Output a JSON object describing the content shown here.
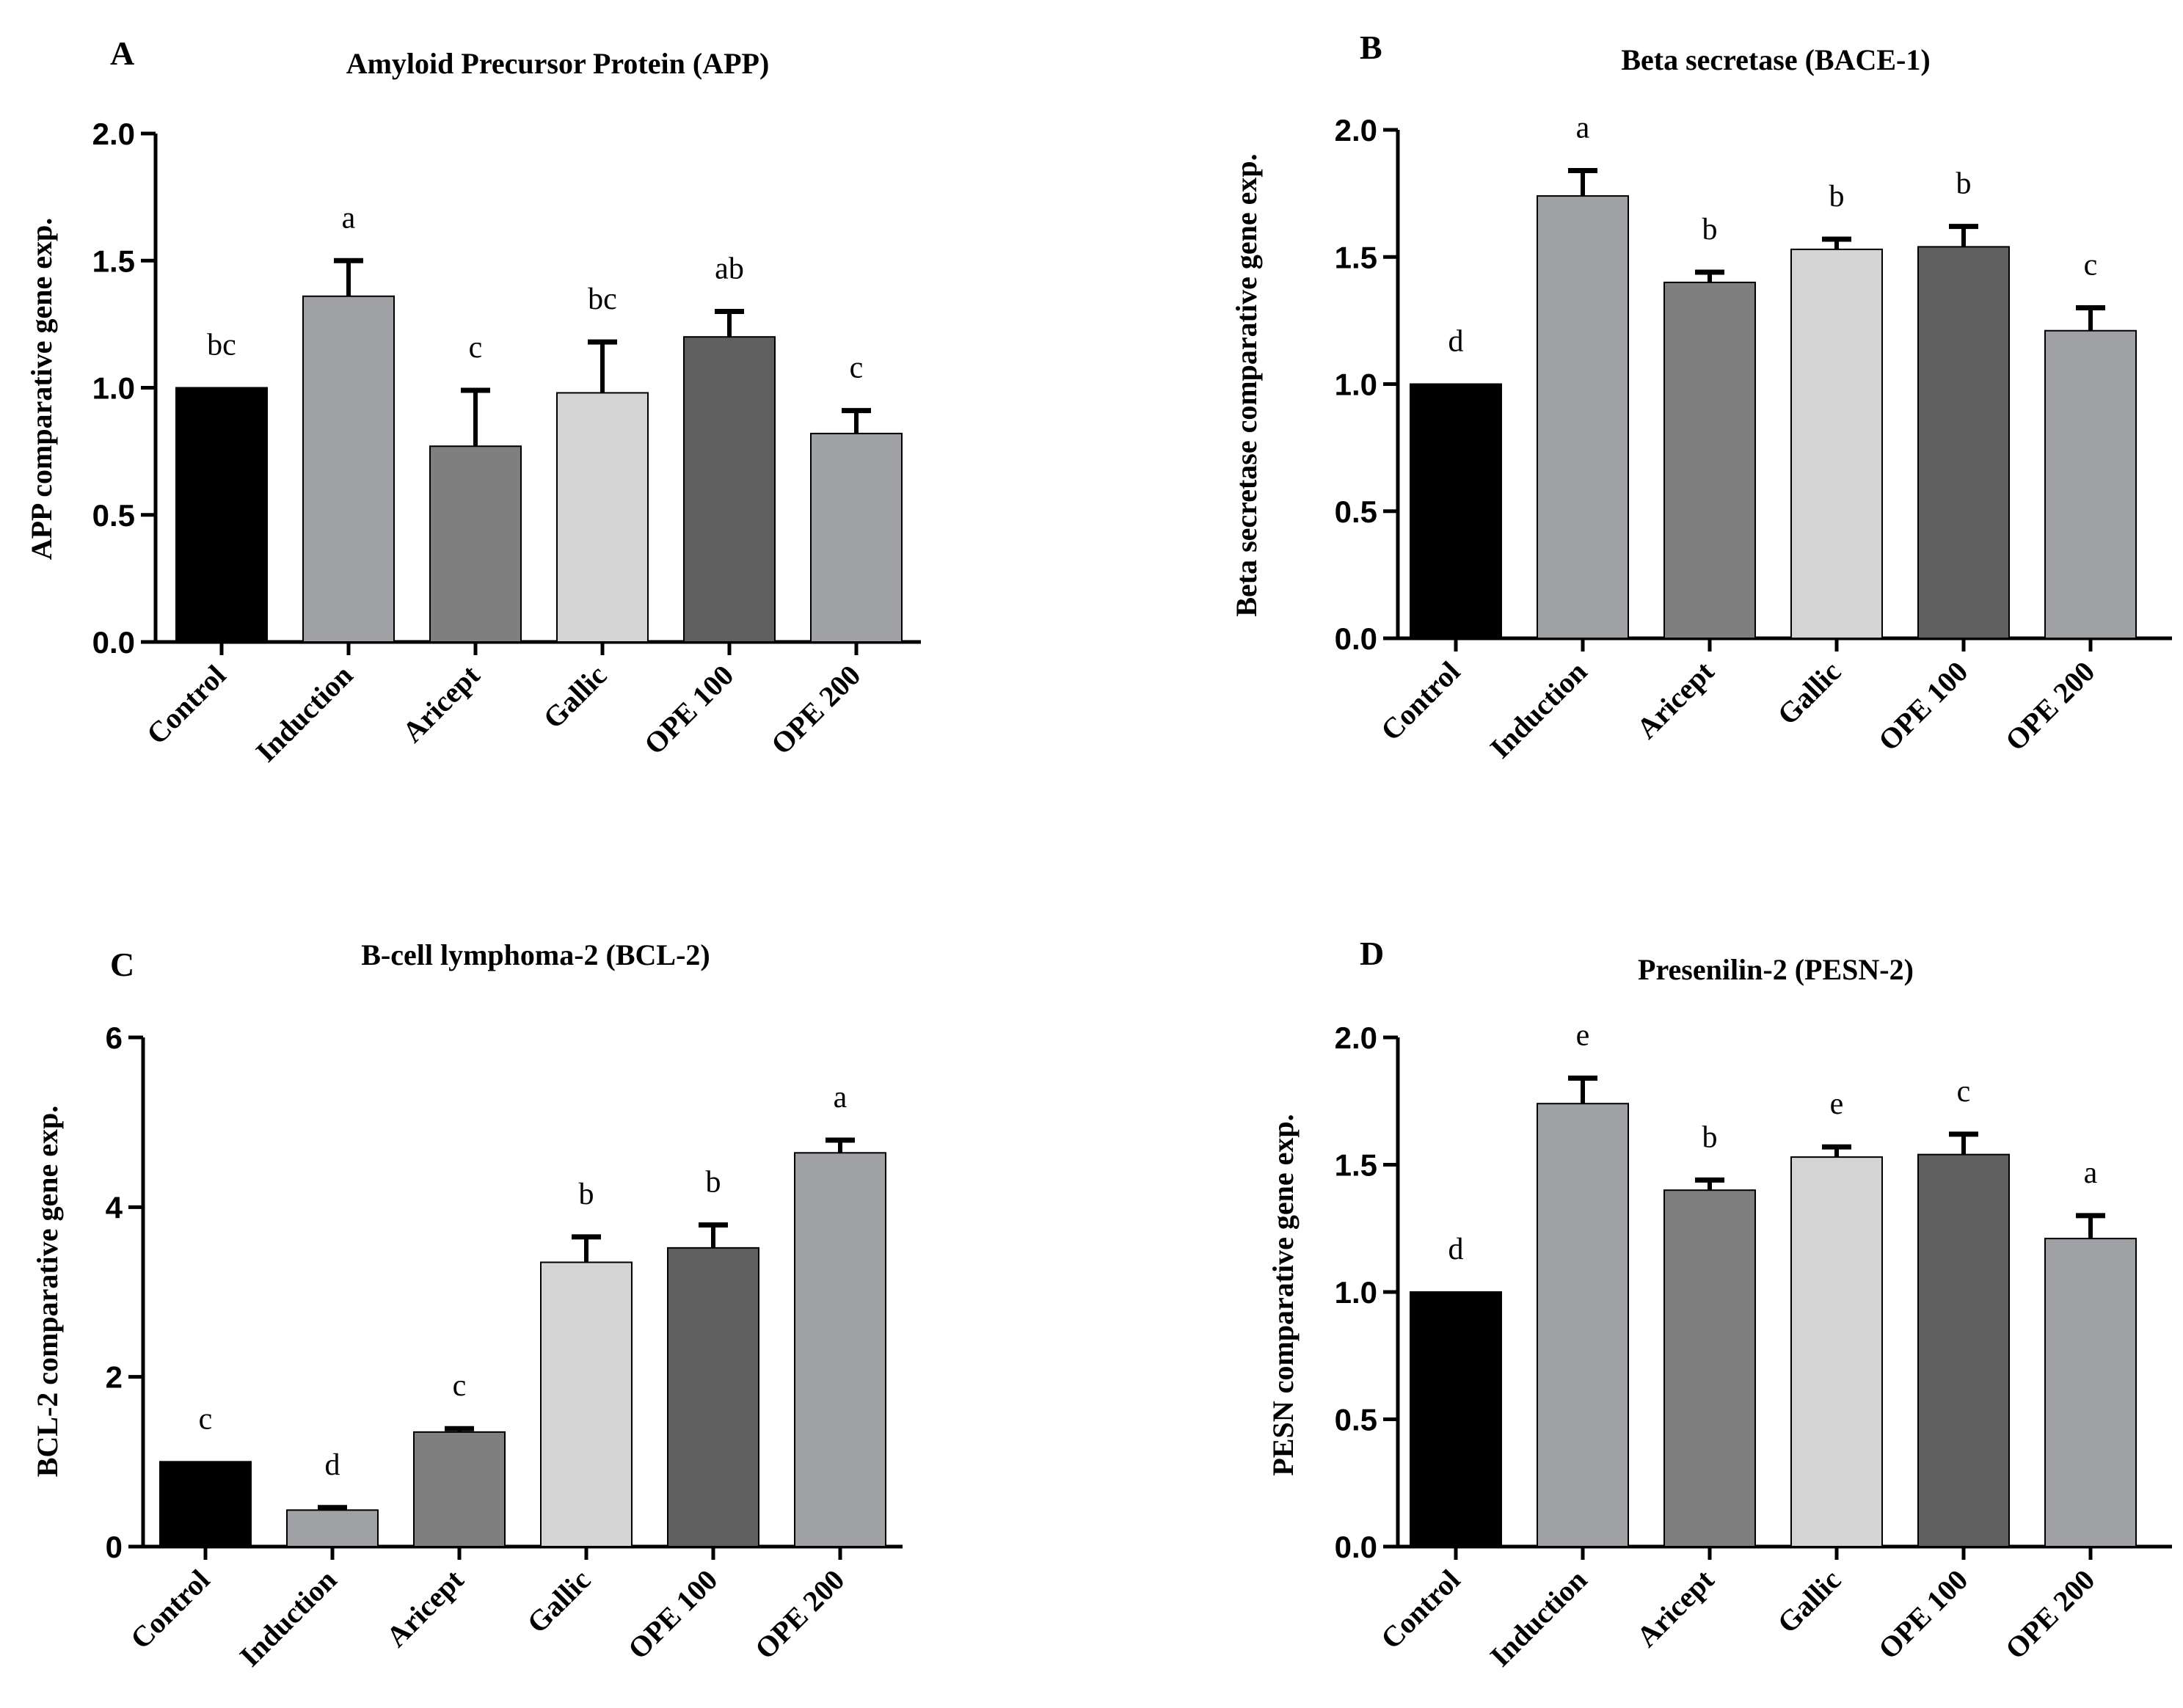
{
  "figure": {
    "background": "#ffffff",
    "axis_color": "#000000"
  },
  "chart_data": [
    {
      "panel": "A",
      "type": "bar",
      "title": "Amyloid Precursor Protein (APP)",
      "xlabel": "",
      "ylabel": "APP comparative gene exp.",
      "categories": [
        "Control",
        "Induction",
        "Aricept",
        "Gallic",
        "OPE 100",
        "OPE 200"
      ],
      "values": [
        1.0,
        1.36,
        0.77,
        0.98,
        1.2,
        0.82
      ],
      "errors": [
        0.0,
        0.14,
        0.22,
        0.2,
        0.1,
        0.09
      ],
      "sig_labels": [
        "bc",
        "a",
        "c",
        "bc",
        "ab",
        "c"
      ],
      "colors": [
        "#000000",
        "#a0a1a5",
        "#7f7f7f",
        "#d4d4d4",
        "#5f5f5f",
        "#a0a1a5"
      ],
      "ylim": [
        0,
        2.0
      ],
      "yticks": [
        0.0,
        0.5,
        1.0,
        1.5,
        2.0
      ],
      "ytick_labels": [
        "0.0",
        "0.5",
        "1.0",
        "1.5",
        "2.0"
      ]
    },
    {
      "panel": "B",
      "type": "bar",
      "title": "Beta secretase (BACE-1)",
      "xlabel": "",
      "ylabel": "Beta secretase comparative gene exp.",
      "categories": [
        "Control",
        "Induction",
        "Aricept",
        "Gallic",
        "OPE 100",
        "OPE 200"
      ],
      "values": [
        1.0,
        1.74,
        1.4,
        1.53,
        1.54,
        1.21
      ],
      "errors": [
        0.0,
        0.1,
        0.04,
        0.04,
        0.08,
        0.09
      ],
      "sig_labels": [
        "d",
        "a",
        "b",
        "b",
        "b",
        "c"
      ],
      "colors": [
        "#000000",
        "#a0a1a5",
        "#7f7f7f",
        "#d4d4d4",
        "#5f5f5f",
        "#a0a1a5"
      ],
      "ylim": [
        0,
        2.0
      ],
      "yticks": [
        0.0,
        0.5,
        1.0,
        1.5,
        2.0
      ],
      "ytick_labels": [
        "0.0",
        "0.5",
        "1.0",
        "1.5",
        "2.0"
      ]
    },
    {
      "panel": "C",
      "type": "bar",
      "title": "B-cell lymphoma-2 (BCL-2)",
      "xlabel": "",
      "ylabel": "BCL-2 comparative gene exp.",
      "categories": [
        "Control",
        "Induction",
        "Aricept",
        "Gallic",
        "OPE 100",
        "OPE 200"
      ],
      "values": [
        1.0,
        0.43,
        1.35,
        3.35,
        3.52,
        4.64
      ],
      "errors": [
        0.0,
        0.03,
        0.04,
        0.3,
        0.27,
        0.15
      ],
      "sig_labels": [
        "c",
        "d",
        "c",
        "b",
        "b",
        "a"
      ],
      "colors": [
        "#000000",
        "#a0a1a5",
        "#7f7f7f",
        "#d4d4d4",
        "#5f5f5f",
        "#a0a1a5"
      ],
      "ylim": [
        0,
        6
      ],
      "yticks": [
        0,
        2,
        4,
        6
      ],
      "ytick_labels": [
        "0",
        "2",
        "4",
        "6"
      ]
    },
    {
      "panel": "D",
      "type": "bar",
      "title": "Presenilin-2 (PESN-2)",
      "xlabel": "",
      "ylabel": "PESN comparative gene exp.",
      "categories": [
        "Control",
        "Induction",
        "Aricept",
        "Gallic",
        "OPE 100",
        "OPE 200"
      ],
      "values": [
        1.0,
        1.74,
        1.4,
        1.53,
        1.54,
        1.21
      ],
      "errors": [
        0.0,
        0.1,
        0.04,
        0.04,
        0.08,
        0.09
      ],
      "sig_labels": [
        "d",
        "e",
        "b",
        "e",
        "c",
        "a"
      ],
      "colors": [
        "#000000",
        "#a0a1a5",
        "#7f7f7f",
        "#d4d4d4",
        "#5f5f5f",
        "#a0a1a5"
      ],
      "ylim": [
        0,
        2.0
      ],
      "yticks": [
        0.0,
        0.5,
        1.0,
        1.5,
        2.0
      ],
      "ytick_labels": [
        "0.0",
        "0.5",
        "1.0",
        "1.5",
        "2.0"
      ]
    }
  ]
}
